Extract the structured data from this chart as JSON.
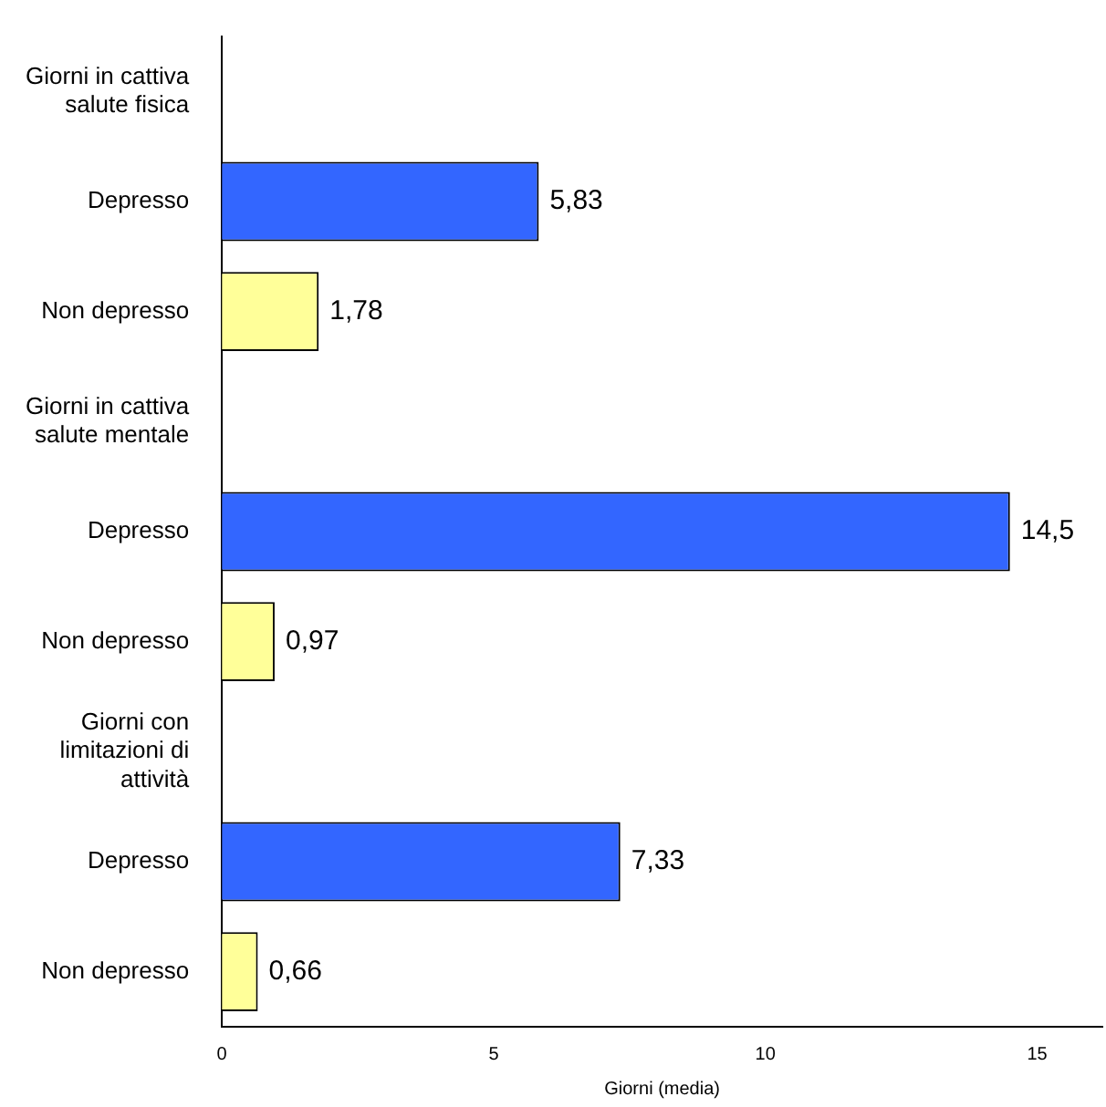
{
  "chart_data": {
    "type": "bar",
    "orientation": "horizontal",
    "xlabel": "Giorni (media)",
    "categories": [
      "Giorni in cattiva salute fisica",
      "Depresso",
      "Non depresso",
      "Giorni in cattiva salute mentale",
      "Depresso",
      "Non depresso",
      "Giorni con limitazioni di attività",
      "Depresso",
      "Non depresso"
    ],
    "values": [
      null,
      5.83,
      1.78,
      null,
      14.5,
      0.97,
      null,
      7.33,
      0.66
    ],
    "colors": [
      "#3366ff",
      "#3366ff",
      "#ffff99",
      "#3366ff",
      "#3366ff",
      "#ffff99",
      "#3366ff",
      "#3366ff",
      "#ffff99"
    ],
    "value_labels": [
      null,
      "5,83",
      "1,78",
      null,
      "14,5",
      "0,97",
      null,
      "7,33",
      "0,66"
    ],
    "xlim": [
      0,
      16.2
    ],
    "xticks": [
      0,
      5,
      10,
      15
    ],
    "grid": false,
    "legend": false
  }
}
